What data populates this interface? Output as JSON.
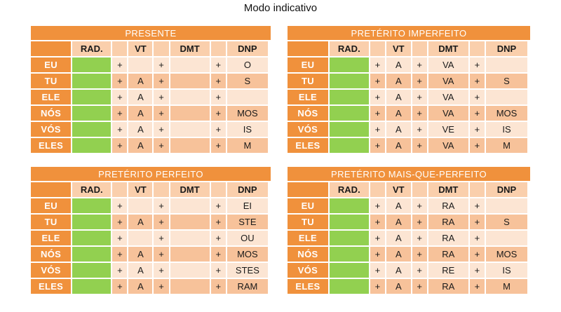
{
  "page_title": "Modo indicativo",
  "colors": {
    "orange": "#F0913C",
    "green": "#92D050",
    "row_light": "#FCE5D3",
    "row_medium": "#F7C29A",
    "header_peach": "#FACFAC",
    "text_light": "#FFFFFF"
  },
  "column_headers": [
    "",
    "RAD.",
    "",
    "VT",
    "",
    "DMT",
    "",
    "DNP"
  ],
  "persons": [
    "EU",
    "TU",
    "ELE",
    "NÓS",
    "VÓS",
    "ELES"
  ],
  "tables": [
    {
      "title": "PRESENTE",
      "rows": [
        [
          "+",
          "",
          "+",
          "",
          "+",
          "O"
        ],
        [
          "+",
          "A",
          "+",
          "",
          "+",
          "S"
        ],
        [
          "+",
          "A",
          "+",
          "",
          "+",
          ""
        ],
        [
          "+",
          "A",
          "+",
          "",
          "+",
          "MOS"
        ],
        [
          "+",
          "A",
          "+",
          "",
          "+",
          "IS"
        ],
        [
          "+",
          "A",
          "+",
          "",
          "+",
          "M"
        ]
      ]
    },
    {
      "title": "PRETÉRITO IMPERFEITO",
      "rows": [
        [
          "+",
          "A",
          "+",
          "VA",
          "+",
          ""
        ],
        [
          "+",
          "A",
          "+",
          "VA",
          "+",
          "S"
        ],
        [
          "+",
          "A",
          "+",
          "VA",
          "+",
          ""
        ],
        [
          "+",
          "A",
          "+",
          "VA",
          "+",
          "MOS"
        ],
        [
          "+",
          "A",
          "+",
          "VE",
          "+",
          "IS"
        ],
        [
          "+",
          "A",
          "+",
          "VA",
          "+",
          "M"
        ]
      ]
    },
    {
      "title": "PRETÉRITO PERFEITO",
      "rows": [
        [
          "+",
          "",
          "+",
          "",
          "+",
          "EI"
        ],
        [
          "+",
          "A",
          "+",
          "",
          "+",
          "STE"
        ],
        [
          "+",
          "",
          "+",
          "",
          "+",
          "OU"
        ],
        [
          "+",
          "A",
          "+",
          "",
          "+",
          "MOS"
        ],
        [
          "+",
          "A",
          "+",
          "",
          "+",
          "STES"
        ],
        [
          "+",
          "A",
          "+",
          "",
          "+",
          "RAM"
        ]
      ]
    },
    {
      "title": "PRETÉRITO MAIS-QUE-PERFEITO",
      "rows": [
        [
          "+",
          "A",
          "+",
          "RA",
          "+",
          ""
        ],
        [
          "+",
          "A",
          "+",
          "RA",
          "+",
          "S"
        ],
        [
          "+",
          "A",
          "+",
          "RA",
          "+",
          ""
        ],
        [
          "+",
          "A",
          "+",
          "RA",
          "+",
          "MOS"
        ],
        [
          "+",
          "A",
          "+",
          "RE",
          "+",
          "IS"
        ],
        [
          "+",
          "A",
          "+",
          "RA",
          "+",
          "M"
        ]
      ]
    }
  ]
}
